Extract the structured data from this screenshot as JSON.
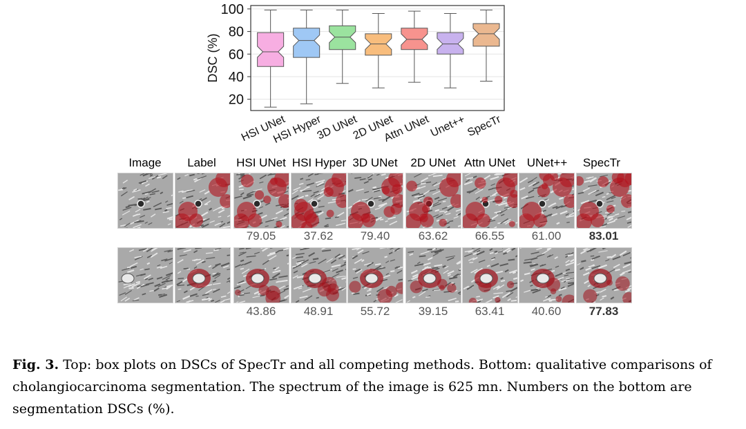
{
  "chart_data": {
    "type": "boxplot",
    "ylabel": "DSC (%)",
    "ylim": [
      10,
      103
    ],
    "yticks": [
      20,
      40,
      60,
      80,
      100
    ],
    "grid": true,
    "categories": [
      "HSI UNet",
      "HSI Hyper",
      "3D UNet",
      "2D UNet",
      "Attn UNet",
      "Unet++",
      "SpecTr"
    ],
    "boxes": [
      {
        "name": "HSI UNet",
        "min": 13,
        "q1": 49,
        "median": 62,
        "q3": 79,
        "max": 99,
        "color": "#f7aee2"
      },
      {
        "name": "HSI Hyper",
        "min": 16,
        "q1": 57,
        "median": 72,
        "q3": 83,
        "max": 99,
        "color": "#9fc8f5"
      },
      {
        "name": "3D UNet",
        "min": 34,
        "q1": 64,
        "median": 75,
        "q3": 85,
        "max": 99,
        "color": "#9be39f"
      },
      {
        "name": "2D UNet",
        "min": 30,
        "q1": 59,
        "median": 69,
        "q3": 78,
        "max": 96,
        "color": "#f8bd7d"
      },
      {
        "name": "Attn UNet",
        "min": 35,
        "q1": 64,
        "median": 73,
        "q3": 83,
        "max": 98,
        "color": "#f7938e"
      },
      {
        "name": "Unet++",
        "min": 30,
        "q1": 60,
        "median": 69,
        "q3": 79,
        "max": 96,
        "color": "#c8b2ee"
      },
      {
        "name": "SpecTr",
        "min": 36,
        "q1": 67,
        "median": 78,
        "q3": 87,
        "max": 99,
        "color": "#ebb890"
      }
    ]
  },
  "columns": [
    "Image",
    "Label",
    "HSI UNet",
    "HSI Hyper",
    "3D UNet",
    "2D UNet",
    "Attn UNet",
    "UNet++",
    "SpecTr"
  ],
  "rows": [
    {
      "scores": [
        "79.05",
        "37.62",
        "79.40",
        "63.62",
        "66.55",
        "61.00",
        "83.01"
      ]
    },
    {
      "scores": [
        "43.86",
        "48.91",
        "55.72",
        "39.15",
        "63.41",
        "40.60",
        "77.83"
      ]
    }
  ],
  "caption": {
    "label": "Fig. 3.",
    "text": "Top: box plots on DSCs of SpecTr and all competing methods. Bottom: qualitative comparisons of cholangiocarcinoma segmentation. The spectrum of the image is 625 mn. Numbers on the bottom are segmentation DSCs (%)."
  }
}
